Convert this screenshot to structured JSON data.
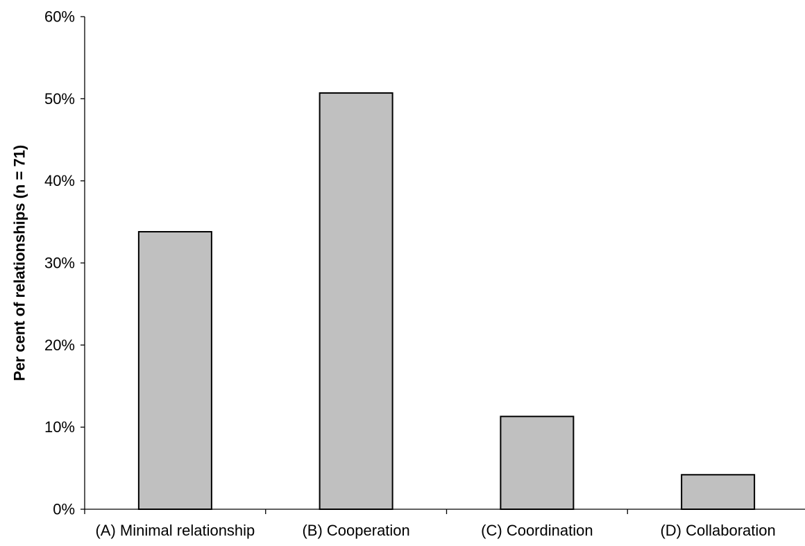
{
  "chart_data": {
    "type": "bar",
    "categories": [
      "(A) Minimal relationship",
      "(B) Cooperation",
      "(C) Coordination",
      "(D) Collaboration"
    ],
    "values": [
      33.8,
      50.7,
      11.3,
      4.2
    ],
    "ylabel": "Per cent of relationships (n = 71)",
    "xlabel": "",
    "ylim": [
      0,
      60
    ],
    "yticks": [
      0,
      10,
      20,
      30,
      40,
      50,
      60
    ],
    "ytick_labels": [
      "0%",
      "10%",
      "20%",
      "30%",
      "40%",
      "50%",
      "60%"
    ],
    "grid": false,
    "bar_color": "#c0c0c0"
  }
}
